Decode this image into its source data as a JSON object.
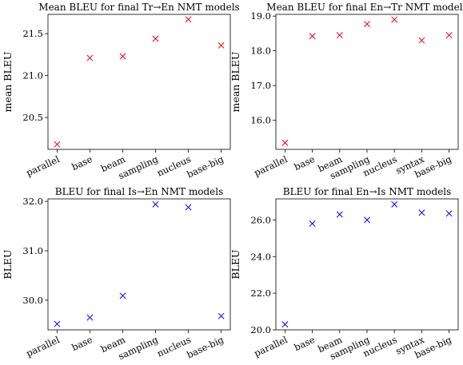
{
  "chart_data": [
    {
      "type": "scatter",
      "title": "Mean BLEU for final Tr→En NMT models",
      "ylabel": "mean BLEU",
      "xlabel": "",
      "color": "#e8000b",
      "marker": "x",
      "categories": [
        "parallel",
        "base",
        "beam",
        "sampling",
        "nucleus",
        "base-big"
      ],
      "values": [
        20.18,
        21.21,
        21.23,
        21.44,
        21.67,
        21.36
      ],
      "ylim": [
        20.12,
        21.73
      ],
      "yticks": [
        20.5,
        21.0,
        21.5
      ],
      "ytick_labels": [
        "20.5",
        "21.0",
        "21.5"
      ]
    },
    {
      "type": "scatter",
      "title": "Mean BLEU for final En→Tr NMT models",
      "ylabel": "mean BLEU",
      "xlabel": "",
      "color": "#e8000b",
      "marker": "x",
      "categories": [
        "parallel",
        "base",
        "beam",
        "sampling",
        "nucleus",
        "syntax",
        "base-big"
      ],
      "values": [
        15.35,
        18.42,
        18.45,
        18.77,
        18.9,
        18.3,
        18.45
      ],
      "ylim": [
        15.16,
        19.05
      ],
      "yticks": [
        16.0,
        17.0,
        18.0,
        19.0
      ],
      "ytick_labels": [
        "16.0",
        "17.0",
        "18.0",
        "19.0"
      ]
    },
    {
      "type": "scatter",
      "title": "BLEU for final Is→En NMT models",
      "ylabel": "BLEU",
      "xlabel": "",
      "color": "#0000ff",
      "marker": "x",
      "categories": [
        "parallel",
        "base",
        "beam",
        "sampling",
        "nucleus",
        "base-big"
      ],
      "values": [
        29.52,
        29.65,
        30.09,
        31.94,
        31.88,
        29.68
      ],
      "ylim": [
        29.4,
        32.05
      ],
      "yticks": [
        30.0,
        31.0,
        32.0
      ],
      "ytick_labels": [
        "30.0",
        "31.0",
        "32.0"
      ]
    },
    {
      "type": "scatter",
      "title": "BLEU for final En→Is NMT models",
      "ylabel": "BLEU",
      "xlabel": "",
      "color": "#0000ff",
      "marker": "x",
      "categories": [
        "parallel",
        "base",
        "beam",
        "sampling",
        "nucleus",
        "syntax",
        "base-big"
      ],
      "values": [
        20.3,
        25.8,
        26.3,
        26.0,
        26.85,
        26.4,
        26.35
      ],
      "ylim": [
        20.0,
        27.15
      ],
      "yticks": [
        20.0,
        22.0,
        24.0,
        26.0
      ],
      "ytick_labels": [
        "20.0",
        "22.0",
        "24.0",
        "26.0"
      ]
    }
  ]
}
